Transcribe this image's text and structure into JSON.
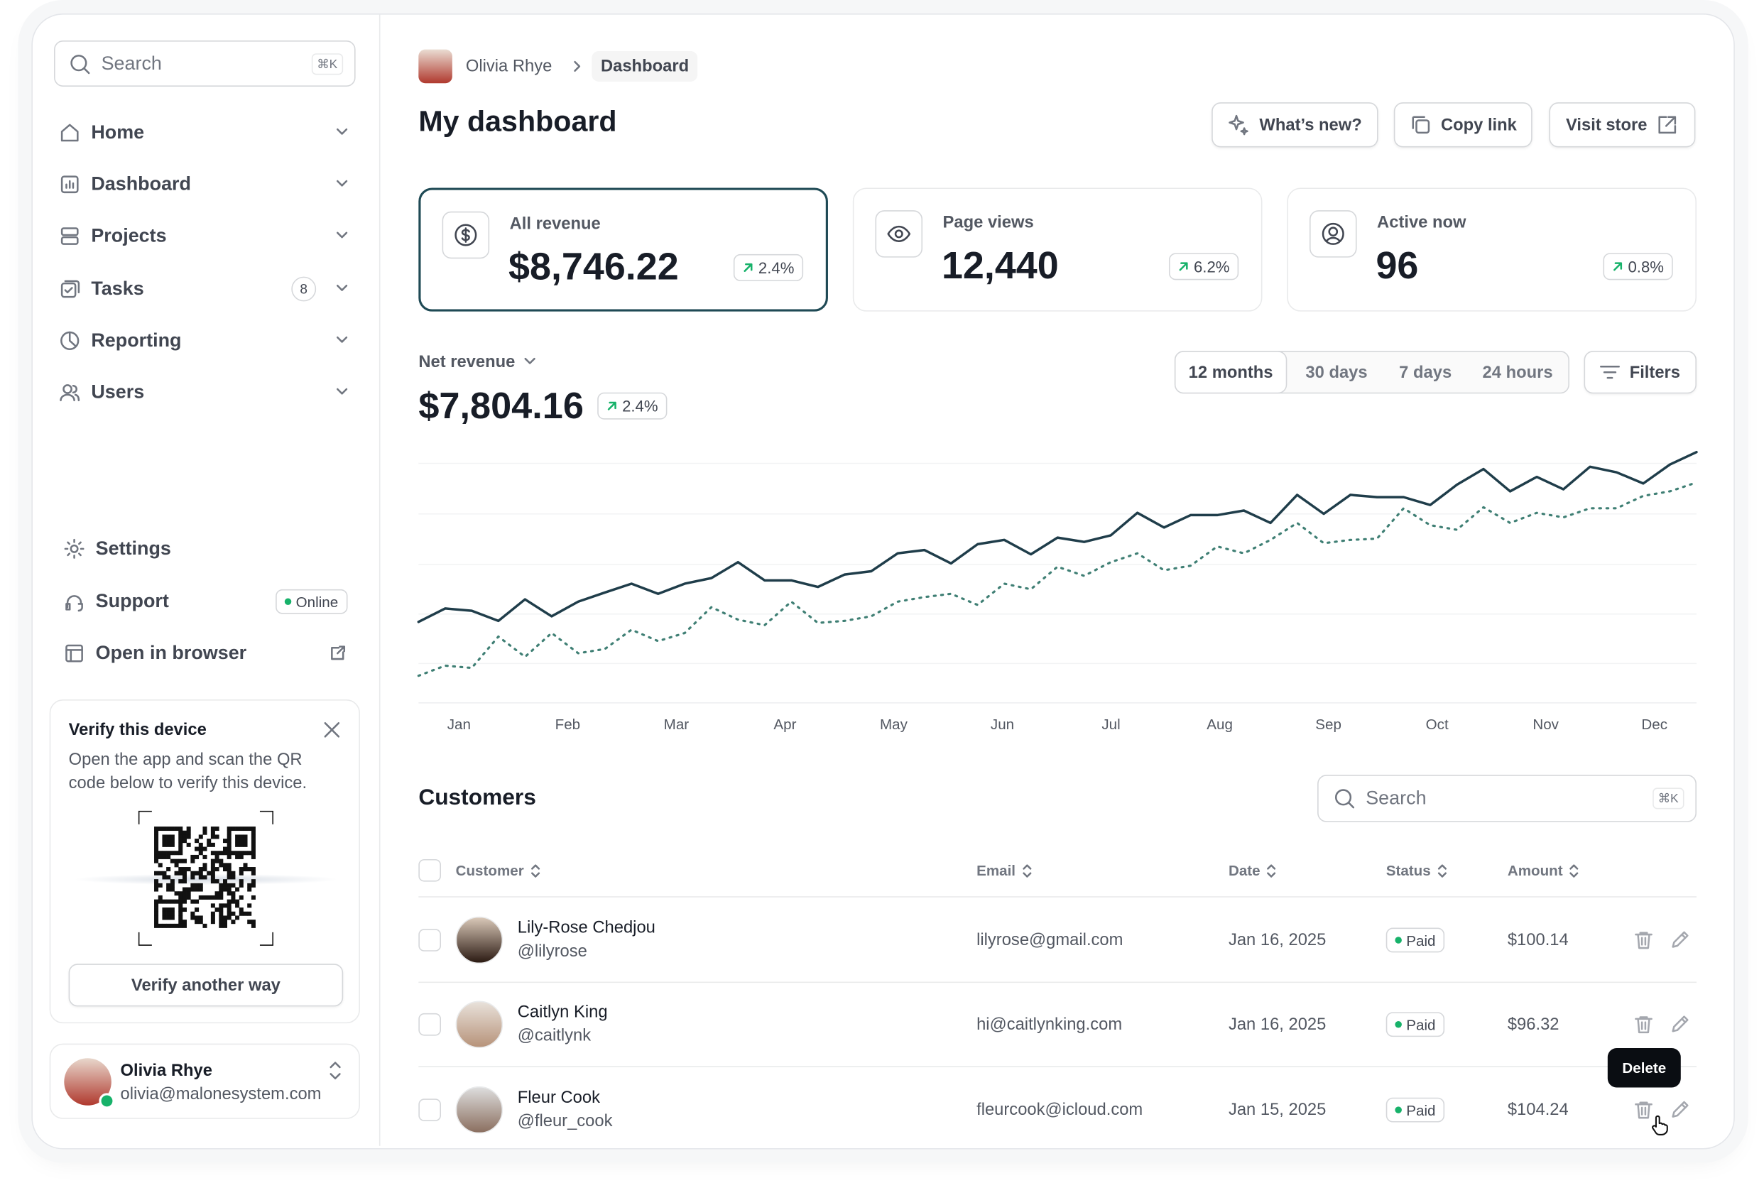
{
  "sidebar": {
    "search": {
      "placeholder": "Search",
      "shortcut": "⌘K"
    },
    "nav": [
      {
        "label": "Home"
      },
      {
        "label": "Dashboard"
      },
      {
        "label": "Projects"
      },
      {
        "label": "Tasks",
        "badge": "8"
      },
      {
        "label": "Reporting"
      },
      {
        "label": "Users"
      }
    ],
    "footer_nav": [
      {
        "label": "Settings"
      },
      {
        "label": "Support",
        "badge": "Online"
      },
      {
        "label": "Open in browser"
      }
    ],
    "verify": {
      "title": "Verify this device",
      "text": "Open the app and scan the QR code below to verify this device.",
      "button": "Verify another way"
    },
    "user": {
      "name": "Olivia Rhye",
      "email": "olivia@malonesystem.com"
    }
  },
  "header": {
    "breadcrumb": [
      "Olivia Rhye",
      "Dashboard"
    ],
    "title": "My dashboard",
    "actions": [
      "What’s new?",
      "Copy link",
      "Visit store"
    ]
  },
  "stats": [
    {
      "label": "All revenue",
      "value": "$8,746.22",
      "change": "2.4%"
    },
    {
      "label": "Page views",
      "value": "12,440",
      "change": "6.2%"
    },
    {
      "label": "Active now",
      "value": "96",
      "change": "0.8%"
    }
  ],
  "chart_data": {
    "type": "line",
    "title": "Net revenue",
    "value": "$7,804.16",
    "change": "2.4%",
    "ranges": [
      "12 months",
      "30 days",
      "7 days",
      "24 hours"
    ],
    "filters": "Filters",
    "xtick_labels": [
      "Jan",
      "Feb",
      "Mar",
      "Apr",
      "May",
      "Jun",
      "Jul",
      "Aug",
      "Sep",
      "Oct",
      "Nov",
      "Dec"
    ],
    "ylim": [
      0,
      100
    ],
    "series": [
      {
        "color": "#1f3d4a",
        "values": [
          32,
          37.3,
          36.4,
          32.4,
          40.9,
          34.2,
          40,
          43.6,
          47.1,
          43.1,
          47.1,
          49.3,
          55.6,
          48.4,
          48.4,
          45.8,
          50.7,
          52,
          59.1,
          60.4,
          55.1,
          62.7,
          64.4,
          58.7,
          65.3,
          63.6,
          66.2,
          75.1,
          69.3,
          74.2,
          74.2,
          76,
          71.1,
          82.2,
          74.7,
          82.2,
          81.3,
          81.3,
          78.2,
          86.2,
          92.4,
          83.6,
          89.3,
          84.4,
          93.3,
          91.1,
          86.7,
          94.2,
          99.1
        ]
      },
      {
        "color": "#3f7f74",
        "dotted": true,
        "values": [
          10.7,
          14.7,
          13.8,
          26.2,
          18.2,
          27.6,
          19.6,
          21.3,
          28.9,
          24.4,
          27.6,
          37.8,
          32.9,
          30.7,
          40,
          31.6,
          32.4,
          34.2,
          40,
          41.8,
          43.1,
          38.7,
          47.1,
          44.9,
          53.8,
          50.2,
          55.6,
          59.1,
          52.4,
          54.2,
          61.8,
          59.1,
          64.4,
          71.1,
          63.1,
          64.4,
          64.9,
          76.9,
          70.2,
          68.4,
          77.3,
          71.1,
          75.1,
          73.3,
          76.9,
          76.9,
          81.8,
          83.6,
          87.1
        ]
      }
    ]
  },
  "customers": {
    "title": "Customers",
    "search": "Search",
    "shortcut": "⌘K",
    "columns": [
      "Customer",
      "Email",
      "Date",
      "Status",
      "Amount"
    ],
    "rows": [
      {
        "name": "Lily-Rose Chedjou",
        "handle": "@lilyrose",
        "email": "lilyrose@gmail.com",
        "date": "Jan 16, 2025",
        "status": "Paid",
        "amount": "$100.14"
      },
      {
        "name": "Caitlyn King",
        "handle": "@caitlynk",
        "email": "hi@caitlynking.com",
        "date": "Jan 16, 2025",
        "status": "Paid",
        "amount": "$96.32"
      },
      {
        "name": "Fleur Cook",
        "handle": "@fleur_cook",
        "email": "fleurcook@icloud.com",
        "date": "Jan 15, 2025",
        "status": "Paid",
        "amount": "$104.24"
      }
    ],
    "tooltip": "Delete"
  }
}
